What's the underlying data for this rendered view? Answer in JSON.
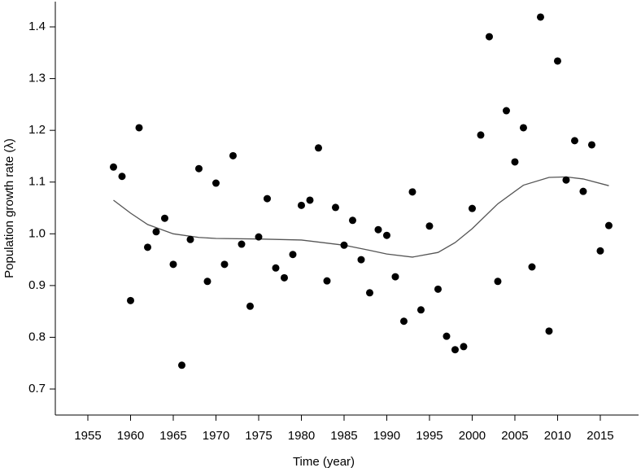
{
  "chart_data": {
    "type": "scatter",
    "x_label": "Time (year)",
    "y_label": "Population growth rate (λ)",
    "x": [
      1958,
      1959,
      1960,
      1961,
      1962,
      1963,
      1964,
      1965,
      1966,
      1967,
      1968,
      1969,
      1970,
      1971,
      1972,
      1973,
      1974,
      1975,
      1976,
      1977,
      1978,
      1979,
      1980,
      1981,
      1982,
      1983,
      1984,
      1985,
      1986,
      1987,
      1988,
      1989,
      1990,
      1991,
      1992,
      1993,
      1994,
      1995,
      1996,
      1997,
      1998,
      1999,
      2000,
      2001,
      2002,
      2003,
      2004,
      2005,
      2006,
      2007,
      2008,
      2009,
      2010,
      2011,
      2012,
      2013,
      2014,
      2015,
      2016
    ],
    "values": [
      1.129,
      1.111,
      0.871,
      1.205,
      0.974,
      1.004,
      1.03,
      0.941,
      0.746,
      0.989,
      1.126,
      0.908,
      1.098,
      0.941,
      1.151,
      0.98,
      0.86,
      0.994,
      1.068,
      0.934,
      0.915,
      0.96,
      1.055,
      1.065,
      1.166,
      0.909,
      1.051,
      0.978,
      1.026,
      0.95,
      0.886,
      1.008,
      0.997,
      0.917,
      0.831,
      1.081,
      0.853,
      1.015,
      0.893,
      0.802,
      0.776,
      0.782,
      1.049,
      1.191,
      1.381,
      0.908,
      1.238,
      1.139,
      1.205,
      0.936,
      1.419,
      0.812,
      1.334,
      1.104,
      1.18,
      1.082,
      1.172,
      0.967,
      1.016
    ],
    "color": "#000000",
    "trend": {
      "x": [
        1958,
        1960,
        1962,
        1965,
        1968,
        1970,
        1975,
        1980,
        1985,
        1988,
        1990,
        1993,
        1996,
        1998,
        2000,
        2003,
        2006,
        2009,
        2011,
        2013,
        2016
      ],
      "values": [
        1.065,
        1.04,
        1.018,
        1.0,
        0.993,
        0.991,
        0.99,
        0.988,
        0.978,
        0.968,
        0.961,
        0.955,
        0.964,
        0.983,
        1.01,
        1.058,
        1.094,
        1.109,
        1.11,
        1.106,
        1.093
      ],
      "color": "#555555"
    },
    "xlim": [
      1951.19,
      2019.48
    ],
    "ylim": [
      0.6497,
      1.4488
    ],
    "xticks": [
      1955,
      1960,
      1965,
      1970,
      1975,
      1980,
      1985,
      1990,
      1995,
      2000,
      2005,
      2010,
      2015
    ],
    "yticks": [
      0.7,
      0.8,
      0.9,
      {
        "value": 1,
        "label": "1.0"
      },
      1.1,
      1.2,
      1.3,
      1.4
    ],
    "grid": false
  }
}
